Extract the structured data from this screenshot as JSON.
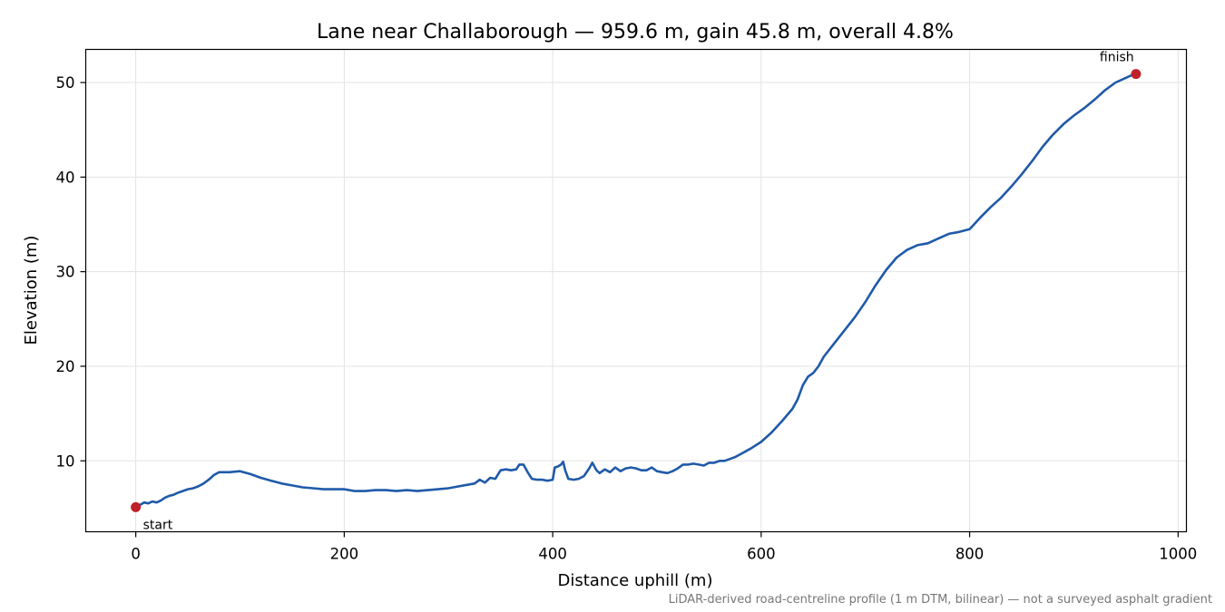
{
  "chart_data": {
    "type": "line",
    "title": "Lane near Challaborough — 959.6 m, gain 45.8 m, overall 4.8%",
    "xlabel": "Distance uphill (m)",
    "ylabel": "Elevation (m)",
    "xlim": [
      -48,
      1008
    ],
    "ylim": [
      2.5,
      53.5
    ],
    "xticks": [
      0,
      200,
      400,
      600,
      800,
      1000
    ],
    "yticks": [
      10,
      20,
      30,
      40,
      50
    ],
    "grid": true,
    "footnote": "LiDAR-derived road-centreline profile (1 m DTM, bilinear) — not a surveyed asphalt gradient",
    "series": [
      {
        "color": "#1f5aa8",
        "x": [
          0,
          5,
          8,
          12,
          16,
          20,
          24,
          28,
          32,
          36,
          40,
          45,
          50,
          55,
          60,
          65,
          70,
          75,
          80,
          90,
          100,
          110,
          120,
          130,
          140,
          150,
          160,
          170,
          180,
          190,
          200,
          210,
          220,
          230,
          240,
          250,
          260,
          270,
          280,
          290,
          300,
          310,
          320,
          325,
          330,
          335,
          340,
          345,
          350,
          355,
          360,
          365,
          368,
          372,
          376,
          380,
          385,
          390,
          395,
          400,
          402,
          405,
          408,
          410,
          412,
          415,
          420,
          425,
          430,
          435,
          438,
          442,
          445,
          450,
          455,
          460,
          465,
          470,
          475,
          480,
          485,
          490,
          495,
          500,
          505,
          510,
          515,
          520,
          525,
          530,
          535,
          540,
          545,
          550,
          555,
          560,
          565,
          570,
          575,
          580,
          590,
          600,
          610,
          620,
          630,
          635,
          640,
          645,
          650,
          655,
          660,
          670,
          680,
          690,
          700,
          710,
          720,
          730,
          740,
          750,
          760,
          770,
          780,
          790,
          800,
          810,
          820,
          830,
          840,
          850,
          860,
          870,
          880,
          890,
          900,
          910,
          920,
          930,
          940,
          950,
          958
        ],
        "y": [
          5.1,
          5.4,
          5.6,
          5.5,
          5.7,
          5.6,
          5.8,
          6.1,
          6.3,
          6.4,
          6.6,
          6.8,
          7.0,
          7.1,
          7.3,
          7.6,
          8.0,
          8.5,
          8.8,
          8.8,
          8.9,
          8.6,
          8.2,
          7.9,
          7.6,
          7.4,
          7.2,
          7.1,
          7.0,
          7.0,
          7.0,
          6.8,
          6.8,
          6.9,
          6.9,
          6.8,
          6.9,
          6.8,
          6.9,
          7.0,
          7.1,
          7.3,
          7.5,
          7.6,
          8.0,
          7.7,
          8.2,
          8.1,
          9.0,
          9.1,
          9.0,
          9.1,
          9.6,
          9.6,
          8.8,
          8.1,
          8.0,
          8.0,
          7.9,
          8.0,
          9.3,
          9.4,
          9.6,
          9.9,
          9.0,
          8.1,
          8.0,
          8.1,
          8.4,
          9.2,
          9.8,
          9.0,
          8.7,
          9.1,
          8.8,
          9.3,
          8.9,
          9.2,
          9.3,
          9.2,
          9.0,
          9.0,
          9.3,
          8.9,
          8.8,
          8.7,
          8.9,
          9.2,
          9.6,
          9.6,
          9.7,
          9.6,
          9.5,
          9.8,
          9.8,
          10.0,
          10.0,
          10.2,
          10.4,
          10.7,
          11.3,
          12.0,
          13.0,
          14.2,
          15.5,
          16.5,
          18.0,
          18.9,
          19.3,
          20.0,
          21.0,
          22.4,
          23.8,
          25.2,
          26.8,
          28.6,
          30.2,
          31.5,
          32.3,
          32.8,
          33.0,
          33.5,
          34.0,
          34.2,
          34.5,
          35.7,
          36.8,
          37.8,
          39.0,
          40.3,
          41.7,
          43.2,
          44.5,
          45.6,
          46.5,
          47.3,
          48.2,
          49.2,
          50.0,
          50.5,
          50.9
        ]
      }
    ],
    "annotations": [
      {
        "text": "start",
        "x": 0,
        "y": 5.1,
        "color": "#c0202a"
      },
      {
        "text": "finish",
        "x": 959.6,
        "y": 50.9,
        "color": "#c0202a"
      }
    ]
  }
}
